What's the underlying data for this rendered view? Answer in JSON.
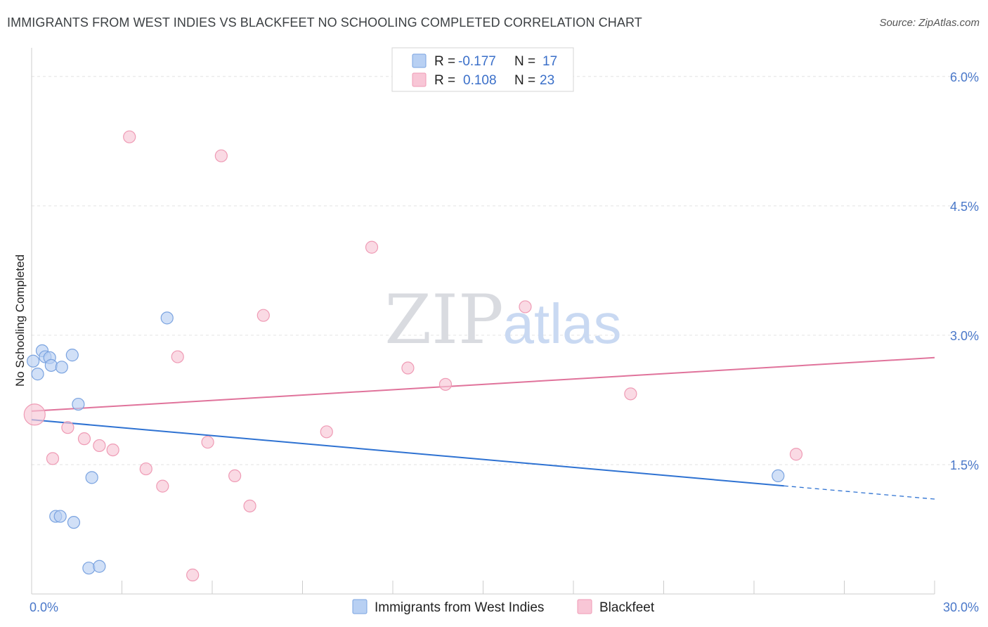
{
  "title": "IMMIGRANTS FROM WEST INDIES VS BLACKFEET NO SCHOOLING COMPLETED CORRELATION CHART",
  "source": "Source: ZipAtlas.com",
  "watermark": {
    "zip": "ZIP",
    "atlas": "atlas"
  },
  "colors": {
    "blue_fill": "#b8d0f3",
    "blue_stroke": "#7aa3e0",
    "blue_line": "#2e72d2",
    "pink_fill": "#f8c6d6",
    "pink_stroke": "#ef9bb5",
    "pink_line": "#e0739b"
  },
  "chart_data": {
    "type": "scatter",
    "ylabel": "No Schooling Completed",
    "xlim": [
      0,
      30
    ],
    "ylim": [
      0,
      6.3
    ],
    "x_tick_labels": [
      {
        "value": 0,
        "label": "0.0%"
      },
      {
        "value": 30,
        "label": "30.0%"
      }
    ],
    "y_tick_labels": [
      {
        "value": 1.5,
        "label": "1.5%"
      },
      {
        "value": 3.0,
        "label": "3.0%"
      },
      {
        "value": 4.5,
        "label": "4.5%"
      },
      {
        "value": 6.0,
        "label": "6.0%"
      }
    ],
    "grid": true,
    "legend_top": [
      {
        "r_label": "R =",
        "r_value": "-0.177",
        "n_label": "N =",
        "n_value": "17"
      },
      {
        "r_label": "R =",
        "r_value": "0.108",
        "n_label": "N =",
        "n_value": "23"
      }
    ],
    "series": [
      {
        "name": "Immigrants from West Indies",
        "color": "blue",
        "points": [
          [
            0.05,
            2.7
          ],
          [
            0.2,
            2.55
          ],
          [
            0.35,
            2.82
          ],
          [
            0.45,
            2.75
          ],
          [
            0.6,
            2.74
          ],
          [
            0.65,
            2.65
          ],
          [
            1.0,
            2.63
          ],
          [
            1.35,
            2.77
          ],
          [
            1.55,
            2.2
          ],
          [
            4.5,
            3.2
          ],
          [
            2.0,
            1.35
          ],
          [
            0.8,
            0.9
          ],
          [
            0.95,
            0.9
          ],
          [
            1.4,
            0.83
          ],
          [
            1.9,
            0.3
          ],
          [
            2.25,
            0.32
          ],
          [
            24.8,
            1.37
          ]
        ],
        "trend": {
          "x_start": 0,
          "y_start": 2.02,
          "x_solid_end": 25.0,
          "x_end": 30,
          "y_end": 1.1
        }
      },
      {
        "name": "Blackfeet",
        "color": "pink",
        "points": [
          [
            0.1,
            2.08
          ],
          [
            3.25,
            5.3
          ],
          [
            6.3,
            5.08
          ],
          [
            11.3,
            4.02
          ],
          [
            7.7,
            3.23
          ],
          [
            16.4,
            3.33
          ],
          [
            4.85,
            2.75
          ],
          [
            12.5,
            2.62
          ],
          [
            13.75,
            2.43
          ],
          [
            19.9,
            2.32
          ],
          [
            1.2,
            1.93
          ],
          [
            0.7,
            1.57
          ],
          [
            1.75,
            1.8
          ],
          [
            2.25,
            1.72
          ],
          [
            2.7,
            1.67
          ],
          [
            5.85,
            1.76
          ],
          [
            9.8,
            1.88
          ],
          [
            3.8,
            1.45
          ],
          [
            4.35,
            1.25
          ],
          [
            6.75,
            1.37
          ],
          [
            7.25,
            1.02
          ],
          [
            5.35,
            0.22
          ],
          [
            25.4,
            1.62
          ]
        ],
        "trend": {
          "x_start": 0,
          "y_start": 2.12,
          "x_end": 30,
          "y_end": 2.74
        }
      }
    ]
  }
}
